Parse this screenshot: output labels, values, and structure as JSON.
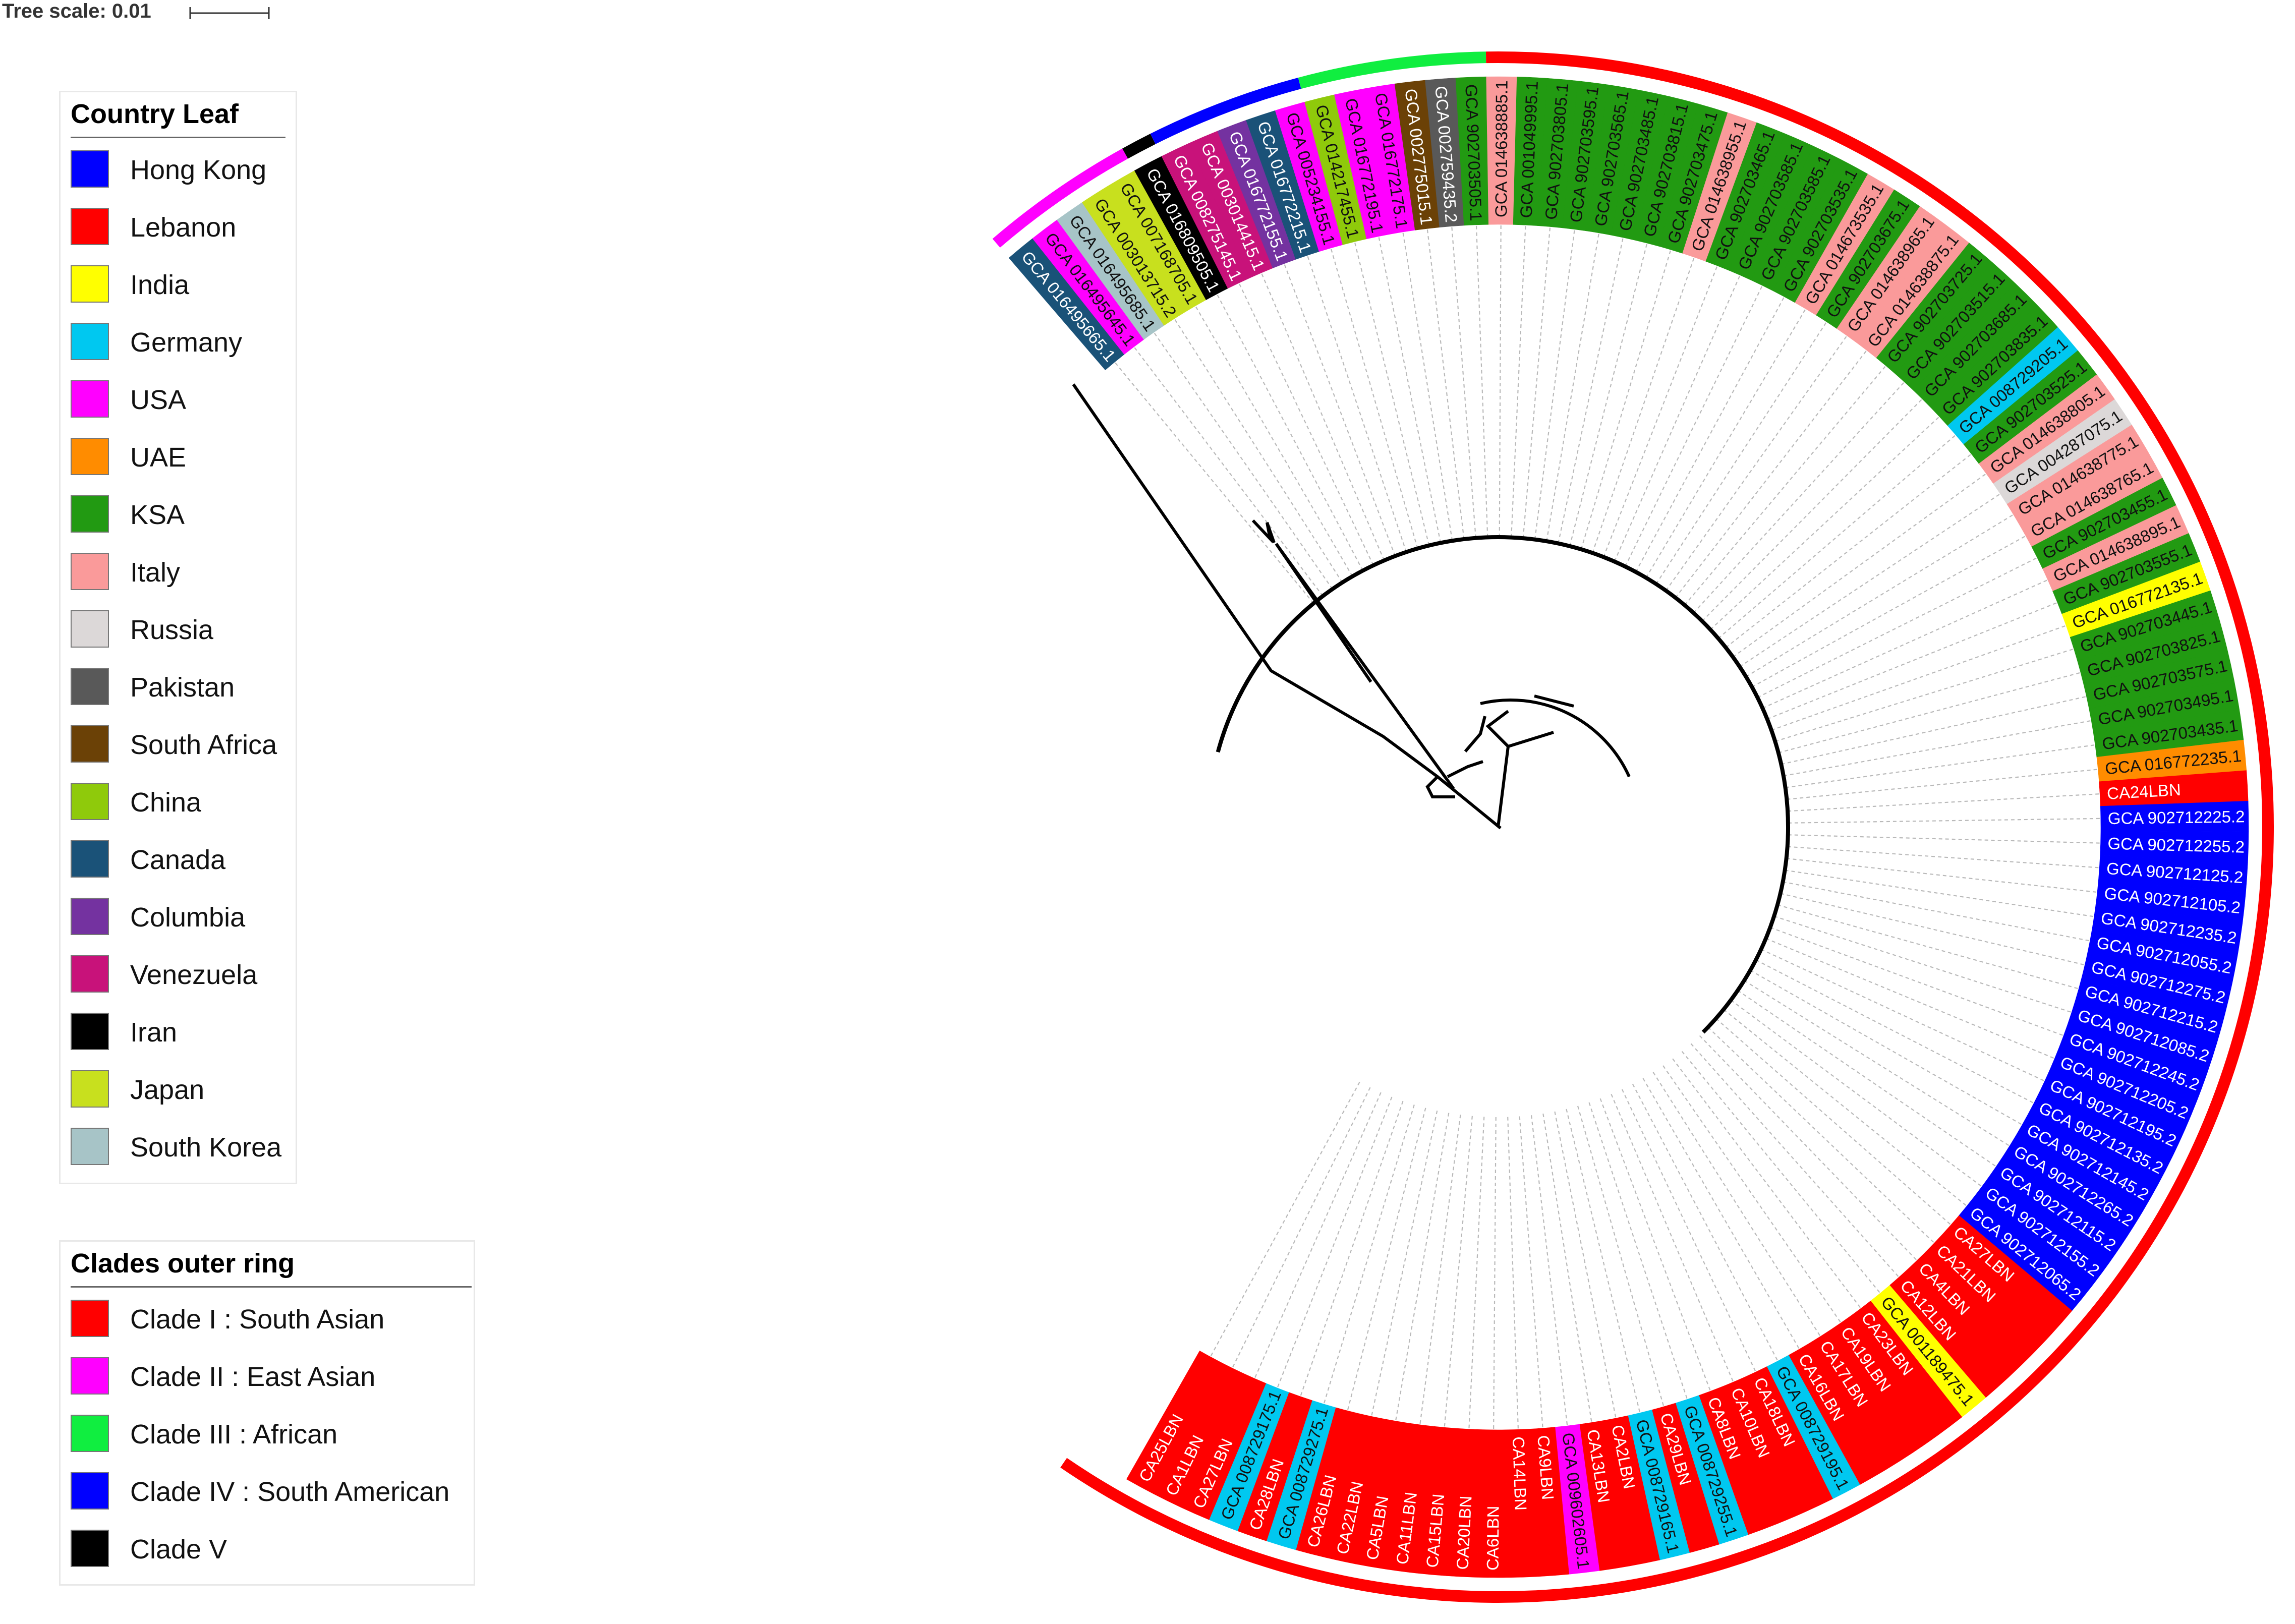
{
  "tree_scale": {
    "label": "Tree scale: 0.01"
  },
  "legend_country": {
    "title": "Country Leaf",
    "items": [
      {
        "label": "Hong Kong",
        "color": "#0000ff"
      },
      {
        "label": "Lebanon",
        "color": "#ff0000"
      },
      {
        "label": "India",
        "color": "#ffff00"
      },
      {
        "label": "Germany",
        "color": "#00c8f0"
      },
      {
        "label": "USA",
        "color": "#ff00ff"
      },
      {
        "label": "UAE",
        "color": "#ff8c00"
      },
      {
        "label": "KSA",
        "color": "#229a12"
      },
      {
        "label": "Italy",
        "color": "#fa9a9a"
      },
      {
        "label": "Russia",
        "color": "#dcd8d8"
      },
      {
        "label": "Pakistan",
        "color": "#595959"
      },
      {
        "label": "South Africa",
        "color": "#6b4106"
      },
      {
        "label": "China",
        "color": "#8fca0b"
      },
      {
        "label": "Canada",
        "color": "#1a5278"
      },
      {
        "label": "Columbia",
        "color": "#7432a0"
      },
      {
        "label": "Venezuela",
        "color": "#c8127a"
      },
      {
        "label": "Iran",
        "color": "#000000"
      },
      {
        "label": "Japan",
        "color": "#c8e01e"
      },
      {
        "label": "South Korea",
        "color": "#a7c4c7"
      }
    ]
  },
  "legend_clades": {
    "title": "Clades outer ring",
    "items": [
      {
        "label": "Clade I : South Asian",
        "color": "#ff0000"
      },
      {
        "label": "Clade II : East Asian",
        "color": "#ff00ff"
      },
      {
        "label": "Clade III : African",
        "color": "#10ee40"
      },
      {
        "label": "Clade IV : South American",
        "color": "#0000ff"
      },
      {
        "label": "Clade V",
        "color": "#000000"
      }
    ]
  },
  "leaves": [
    {
      "label": "GCA 016495665.1",
      "country": "Canada"
    },
    {
      "label": "GCA 016495645.1",
      "country": "USA"
    },
    {
      "label": "GCA 016495685.1",
      "country": "South Korea"
    },
    {
      "label": "GCA 003013715.2",
      "country": "Japan"
    },
    {
      "label": "GCA 007168705.1",
      "country": "Japan"
    },
    {
      "label": "GCA 016809505.1",
      "country": "Iran"
    },
    {
      "label": "GCA 008275145.1",
      "country": "Venezuela"
    },
    {
      "label": "GCA 003014415.1",
      "country": "Venezuela"
    },
    {
      "label": "GCA 016772155.1",
      "country": "Columbia"
    },
    {
      "label": "GCA 016772215.1",
      "country": "Canada"
    },
    {
      "label": "GCA 005234155.1",
      "country": "USA"
    },
    {
      "label": "GCA 014217455.1",
      "country": "China"
    },
    {
      "label": "GCA 016772195.1",
      "country": "USA"
    },
    {
      "label": "GCA 016772175.1",
      "country": "USA"
    },
    {
      "label": "GCA 002775015.1",
      "country": "South Africa"
    },
    {
      "label": "GCA 002759435.2",
      "country": "Pakistan"
    },
    {
      "label": "GCA 902703505.1",
      "country": "KSA"
    },
    {
      "label": "GCA 014638885.1",
      "country": "Italy"
    },
    {
      "label": "GCA 001049995.1",
      "country": "KSA"
    },
    {
      "label": "GCA 902703805.1",
      "country": "KSA"
    },
    {
      "label": "GCA 902703595.1",
      "country": "KSA"
    },
    {
      "label": "GCA 902703565.1",
      "country": "KSA"
    },
    {
      "label": "GCA 902703485.1",
      "country": "KSA"
    },
    {
      "label": "GCA 902703815.1",
      "country": "KSA"
    },
    {
      "label": "GCA 902703475.1",
      "country": "KSA"
    },
    {
      "label": "GCA 014638955.1",
      "country": "Italy"
    },
    {
      "label": "GCA 902703465.1",
      "country": "KSA"
    },
    {
      "label": "GCA 902703585.1",
      "country": "KSA"
    },
    {
      "label": "GCA 902703585.1",
      "country": "KSA"
    },
    {
      "label": "GCA 902703535.1",
      "country": "KSA"
    },
    {
      "label": "GCA 014673535.1",
      "country": "Italy"
    },
    {
      "label": "GCA 902703675.1",
      "country": "KSA"
    },
    {
      "label": "GCA 014638965.1",
      "country": "Italy"
    },
    {
      "label": "GCA 014638875.1",
      "country": "Italy"
    },
    {
      "label": "GCA 902703725.1",
      "country": "KSA"
    },
    {
      "label": "GCA 902703515.1",
      "country": "KSA"
    },
    {
      "label": "GCA 902703685.1",
      "country": "KSA"
    },
    {
      "label": "GCA 902703835.1",
      "country": "KSA"
    },
    {
      "label": "GCA 008729205.1",
      "country": "Germany"
    },
    {
      "label": "GCA 902703525.1",
      "country": "KSA"
    },
    {
      "label": "GCA 014638805.1",
      "country": "Italy"
    },
    {
      "label": "GCA 004287075.1",
      "country": "Russia"
    },
    {
      "label": "GCA 014638775.1",
      "country": "Italy"
    },
    {
      "label": "GCA 014638765.1",
      "country": "Italy"
    },
    {
      "label": "GCA 902703455.1",
      "country": "KSA"
    },
    {
      "label": "GCA 014638895.1",
      "country": "Italy"
    },
    {
      "label": "GCA 902703555.1",
      "country": "KSA"
    },
    {
      "label": "GCA 016772135.1",
      "country": "India"
    },
    {
      "label": "GCA 902703445.1",
      "country": "KSA"
    },
    {
      "label": "GCA 902703825.1",
      "country": "KSA"
    },
    {
      "label": "GCA 902703575.1",
      "country": "KSA"
    },
    {
      "label": "GCA 902703495.1",
      "country": "KSA"
    },
    {
      "label": "GCA 902703435.1",
      "country": "KSA"
    },
    {
      "label": "GCA 016772235.1",
      "country": "UAE"
    },
    {
      "label": "CA24LBN",
      "country": "Lebanon"
    },
    {
      "label": "GCA 902712225.2",
      "country": "Hong Kong"
    },
    {
      "label": "GCA 902712255.2",
      "country": "Hong Kong"
    },
    {
      "label": "GCA 902712125.2",
      "country": "Hong Kong"
    },
    {
      "label": "GCA 902712105.2",
      "country": "Hong Kong"
    },
    {
      "label": "GCA 902712235.2",
      "country": "Hong Kong"
    },
    {
      "label": "GCA 902712055.2",
      "country": "Hong Kong"
    },
    {
      "label": "GCA 902712275.2",
      "country": "Hong Kong"
    },
    {
      "label": "GCA 902712215.2",
      "country": "Hong Kong"
    },
    {
      "label": "GCA 902712085.2",
      "country": "Hong Kong"
    },
    {
      "label": "GCA 902712245.2",
      "country": "Hong Kong"
    },
    {
      "label": "GCA 902712205.2",
      "country": "Hong Kong"
    },
    {
      "label": "GCA 902712195.2",
      "country": "Hong Kong"
    },
    {
      "label": "GCA 902712135.2",
      "country": "Hong Kong"
    },
    {
      "label": "GCA 902712145.2",
      "country": "Hong Kong"
    },
    {
      "label": "GCA 902712265.2",
      "country": "Hong Kong"
    },
    {
      "label": "GCA 902712115.2",
      "country": "Hong Kong"
    },
    {
      "label": "GCA 902712155.2",
      "country": "Hong Kong"
    },
    {
      "label": "GCA 902712065.2",
      "country": "Hong Kong"
    },
    {
      "label": "CA27LBN",
      "country": "Lebanon"
    },
    {
      "label": "CA21LBN",
      "country": "Lebanon"
    },
    {
      "label": "CA4LBN",
      "country": "Lebanon"
    },
    {
      "label": "CA12LBN",
      "country": "Lebanon"
    },
    {
      "label": "GCA 001189475.1",
      "country": "India"
    },
    {
      "label": "CA23LBN",
      "country": "Lebanon"
    },
    {
      "label": "CA19LBN",
      "country": "Lebanon"
    },
    {
      "label": "CA17LBN",
      "country": "Lebanon"
    },
    {
      "label": "CA16LBN",
      "country": "Lebanon"
    },
    {
      "label": "GCA 008729195.1",
      "country": "Germany"
    },
    {
      "label": "CA18LBN",
      "country": "Lebanon"
    },
    {
      "label": "CA10LBN",
      "country": "Lebanon"
    },
    {
      "label": "CA8LBN",
      "country": "Lebanon"
    },
    {
      "label": "GCA 008729255.1",
      "country": "Germany"
    },
    {
      "label": "CA29LBN",
      "country": "Lebanon"
    },
    {
      "label": "GCA 008729165.1",
      "country": "Germany"
    },
    {
      "label": "CA2LBN",
      "country": "Lebanon"
    },
    {
      "label": "CA13LBN",
      "country": "Lebanon"
    },
    {
      "label": "GCA 009602605.1",
      "country": "USA"
    },
    {
      "label": "CA9LBN",
      "country": "Lebanon"
    },
    {
      "label": "CA14LBN",
      "country": "Lebanon"
    },
    {
      "label": "CA6LBN",
      "country": "Lebanon"
    },
    {
      "label": "CA20LBN",
      "country": "Lebanon"
    },
    {
      "label": "CA15LBN",
      "country": "Lebanon"
    },
    {
      "label": "CA11LBN",
      "country": "Lebanon"
    },
    {
      "label": "CA5LBN",
      "country": "Lebanon"
    },
    {
      "label": "CA22LBN",
      "country": "Lebanon"
    },
    {
      "label": "CA26LBN",
      "country": "Lebanon"
    },
    {
      "label": "GCA 008729275.1",
      "country": "Germany"
    },
    {
      "label": "CA28LBN",
      "country": "Lebanon"
    },
    {
      "label": "GCA 008729175.1",
      "country": "Germany"
    },
    {
      "label": "CA27LBN",
      "country": "Lebanon"
    },
    {
      "label": "CA1LBN",
      "country": "Lebanon"
    },
    {
      "label": "CA25LBN",
      "country": "Lebanon"
    }
  ],
  "clade_ring": [
    {
      "clade": "Clade II : East Asian",
      "from_leaf": 0,
      "to_leaf": 4
    },
    {
      "clade": "Clade V",
      "from_leaf": 5,
      "to_leaf": 5
    },
    {
      "clade": "Clade IV : South American",
      "from_leaf": 6,
      "to_leaf": 10
    },
    {
      "clade": "Clade III : African",
      "from_leaf": 11,
      "to_leaf": 16
    },
    {
      "clade": "Clade I : South Asian",
      "from_leaf": 17,
      "to_leaf": 108
    }
  ]
}
